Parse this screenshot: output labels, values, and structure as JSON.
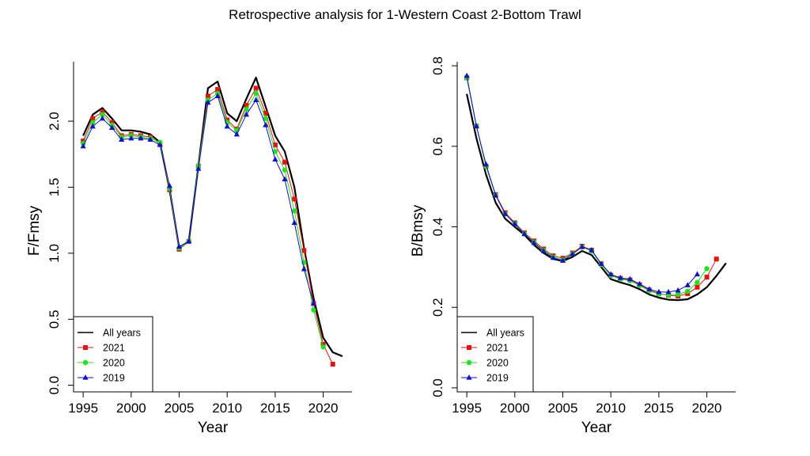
{
  "title": "Retrospective analysis for 1-Western Coast 2-Bottom Trawl",
  "colors": {
    "all_years": "#000000",
    "2021": "#e3140f",
    "2020": "#1ee31e",
    "2019": "#1010c8"
  },
  "chart_data": [
    {
      "type": "line",
      "xlabel": "Year",
      "ylabel": "F/Fmsy",
      "xlim": [
        1994,
        2023
      ],
      "ylim": [
        -0.05,
        2.45
      ],
      "xticks": [
        1995,
        2000,
        2005,
        2010,
        2015,
        2020
      ],
      "yticks": [
        0.0,
        0.5,
        1.0,
        1.5,
        2.0
      ],
      "ytick_labels": [
        "0.0",
        "0.5",
        "1.0",
        "1.5",
        "2.0"
      ],
      "legend_position": "bottom-left",
      "series": [
        {
          "name": "All years",
          "marker": "none",
          "color": "#000000",
          "x": [
            1995,
            1996,
            1997,
            1998,
            1999,
            2000,
            2001,
            2002,
            2003,
            2004,
            2005,
            2006,
            2007,
            2008,
            2009,
            2010,
            2011,
            2012,
            2013,
            2014,
            2015,
            2016,
            2017,
            2018,
            2019,
            2020,
            2021,
            2022
          ],
          "y": [
            1.89,
            2.05,
            2.1,
            2.02,
            1.93,
            1.93,
            1.92,
            1.9,
            1.84,
            1.48,
            1.04,
            1.09,
            1.66,
            2.25,
            2.3,
            2.06,
            2.0,
            2.17,
            2.33,
            2.11,
            1.89,
            1.77,
            1.5,
            1.04,
            0.66,
            0.36,
            0.25,
            0.22
          ]
        },
        {
          "name": "2021",
          "marker": "square",
          "color": "#e3140f",
          "x": [
            1995,
            1996,
            1997,
            1998,
            1999,
            2000,
            2001,
            2002,
            2003,
            2004,
            2005,
            2006,
            2007,
            2008,
            2009,
            2010,
            2011,
            2012,
            2013,
            2014,
            2015,
            2016,
            2017,
            2018,
            2019,
            2020,
            2021
          ],
          "y": [
            1.85,
            2.02,
            2.07,
            1.99,
            1.89,
            1.9,
            1.89,
            1.88,
            1.83,
            1.48,
            1.03,
            1.09,
            1.66,
            2.19,
            2.24,
            2.01,
            1.94,
            2.12,
            2.25,
            2.06,
            1.82,
            1.69,
            1.41,
            1.02,
            0.62,
            0.31,
            0.16
          ]
        },
        {
          "name": "2020",
          "marker": "circle",
          "color": "#1ee31e",
          "x": [
            1995,
            1996,
            1997,
            1998,
            1999,
            2000,
            2001,
            2002,
            2003,
            2004,
            2005,
            2006,
            2007,
            2008,
            2009,
            2010,
            2011,
            2012,
            2013,
            2014,
            2015,
            2016,
            2017,
            2018,
            2019,
            2020
          ],
          "y": [
            1.83,
            1.99,
            2.05,
            1.97,
            1.88,
            1.89,
            1.88,
            1.87,
            1.84,
            1.49,
            1.04,
            1.09,
            1.66,
            2.16,
            2.21,
            1.99,
            1.93,
            2.09,
            2.21,
            2.02,
            1.77,
            1.63,
            1.32,
            0.93,
            0.57,
            0.29
          ]
        },
        {
          "name": "2019",
          "marker": "triangle",
          "color": "#1010c8",
          "x": [
            1995,
            1996,
            1997,
            1998,
            1999,
            2000,
            2001,
            2002,
            2003,
            2004,
            2005,
            2006,
            2007,
            2008,
            2009,
            2010,
            2011,
            2012,
            2013,
            2014,
            2015,
            2016,
            2017,
            2018,
            2019
          ],
          "y": [
            1.81,
            1.96,
            2.02,
            1.95,
            1.86,
            1.87,
            1.87,
            1.86,
            1.82,
            1.51,
            1.05,
            1.09,
            1.64,
            2.14,
            2.19,
            1.96,
            1.9,
            2.05,
            2.16,
            1.97,
            1.71,
            1.56,
            1.23,
            0.88,
            0.62
          ]
        }
      ]
    },
    {
      "type": "line",
      "xlabel": "Year",
      "ylabel": "B/Bmsy",
      "xlim": [
        1994,
        2023
      ],
      "ylim": [
        -0.01,
        0.81
      ],
      "xticks": [
        1995,
        2000,
        2005,
        2010,
        2015,
        2020
      ],
      "yticks": [
        0.0,
        0.2,
        0.4,
        0.6,
        0.8
      ],
      "ytick_labels": [
        "0.0",
        "0.2",
        "0.4",
        "0.6",
        "0.8"
      ],
      "legend_position": "bottom-left",
      "series": [
        {
          "name": "All years",
          "marker": "none",
          "color": "#000000",
          "x": [
            1995,
            1996,
            1997,
            1998,
            1999,
            2000,
            2001,
            2002,
            2003,
            2004,
            2005,
            2006,
            2007,
            2008,
            2009,
            2010,
            2011,
            2012,
            2013,
            2014,
            2015,
            2016,
            2017,
            2018,
            2019,
            2020,
            2021,
            2022
          ],
          "y": [
            0.73,
            0.62,
            0.53,
            0.46,
            0.42,
            0.4,
            0.38,
            0.355,
            0.335,
            0.32,
            0.315,
            0.325,
            0.34,
            0.33,
            0.3,
            0.27,
            0.262,
            0.255,
            0.245,
            0.232,
            0.224,
            0.219,
            0.218,
            0.22,
            0.232,
            0.25,
            0.278,
            0.31
          ]
        },
        {
          "name": "2021",
          "marker": "square",
          "color": "#e3140f",
          "x": [
            1995,
            1996,
            1997,
            1998,
            1999,
            2000,
            2001,
            2002,
            2003,
            2004,
            2005,
            2006,
            2007,
            2008,
            2009,
            2010,
            2011,
            2012,
            2013,
            2014,
            2015,
            2016,
            2017,
            2018,
            2019,
            2020,
            2021
          ],
          "y": [
            0.77,
            0.65,
            0.55,
            0.48,
            0.435,
            0.41,
            0.385,
            0.365,
            0.345,
            0.328,
            0.322,
            0.335,
            0.352,
            0.342,
            0.308,
            0.28,
            0.272,
            0.268,
            0.256,
            0.243,
            0.234,
            0.23,
            0.228,
            0.234,
            0.25,
            0.275,
            0.32
          ]
        },
        {
          "name": "2020",
          "marker": "circle",
          "color": "#1ee31e",
          "x": [
            1995,
            1996,
            1997,
            1998,
            1999,
            2000,
            2001,
            2002,
            2003,
            2004,
            2005,
            2006,
            2007,
            2008,
            2009,
            2010,
            2011,
            2012,
            2013,
            2014,
            2015,
            2016,
            2017,
            2018,
            2019,
            2020
          ],
          "y": [
            0.77,
            0.65,
            0.55,
            0.478,
            0.432,
            0.408,
            0.383,
            0.362,
            0.342,
            0.325,
            0.318,
            0.333,
            0.35,
            0.34,
            0.306,
            0.279,
            0.27,
            0.266,
            0.254,
            0.241,
            0.233,
            0.231,
            0.232,
            0.24,
            0.262,
            0.296
          ]
        },
        {
          "name": "2019",
          "marker": "triangle",
          "color": "#1010c8",
          "x": [
            1995,
            1996,
            1997,
            1998,
            1999,
            2000,
            2001,
            2002,
            2003,
            2004,
            2005,
            2006,
            2007,
            2008,
            2009,
            2010,
            2011,
            2012,
            2013,
            2014,
            2015,
            2016,
            2017,
            2018,
            2019
          ],
          "y": [
            0.775,
            0.65,
            0.555,
            0.478,
            0.432,
            0.407,
            0.382,
            0.36,
            0.34,
            0.323,
            0.316,
            0.332,
            0.35,
            0.342,
            0.308,
            0.282,
            0.273,
            0.27,
            0.258,
            0.245,
            0.238,
            0.238,
            0.242,
            0.255,
            0.282
          ]
        }
      ]
    }
  ]
}
